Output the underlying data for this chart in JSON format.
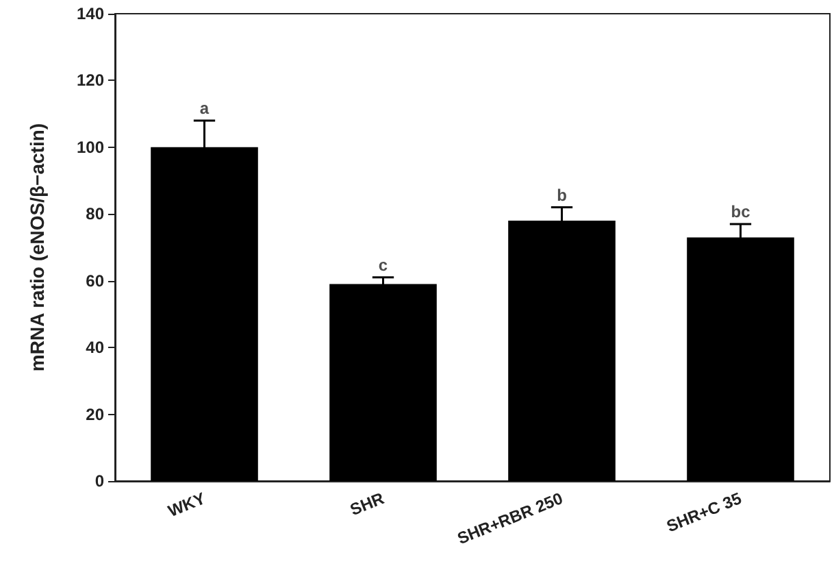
{
  "chart_data": {
    "type": "bar",
    "ylabel": "mRNA ratio (eNOS/β−actin)",
    "categories": [
      "WKY",
      "SHR",
      "SHR+RBR 250",
      "SHR+C 35"
    ],
    "values": [
      100,
      59,
      78,
      73
    ],
    "errors": [
      8,
      2,
      4,
      4
    ],
    "color": "#000000",
    "ylim": [
      0,
      140
    ],
    "yticks": [
      0,
      20,
      40,
      60,
      80,
      100,
      120,
      140
    ],
    "grid": false,
    "annotations": [
      {
        "text": "a",
        "x": "WKY",
        "y": 108
      },
      {
        "text": "c",
        "x": "SHR",
        "y": 61
      },
      {
        "text": "b",
        "x": "SHR+RBR 250",
        "y": 82
      },
      {
        "text": "bc",
        "x": "SHR+C 35",
        "y": 77
      }
    ]
  }
}
